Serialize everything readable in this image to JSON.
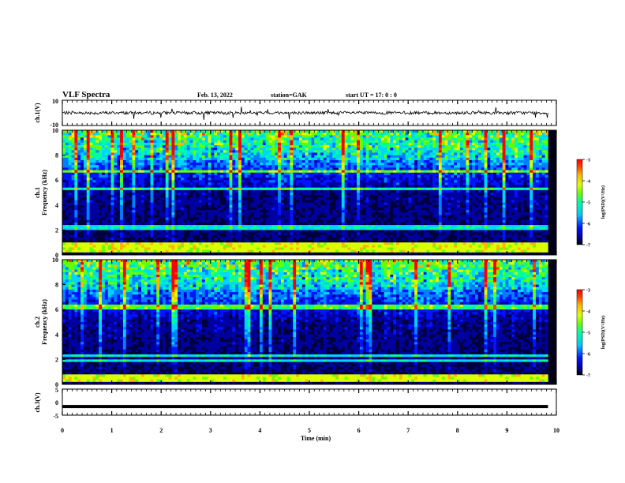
{
  "header": {
    "title": "VLF Spectra",
    "date": "Feb. 13, 2022",
    "station": "station=GAK",
    "start": "start UT =  17: 0  : 0"
  },
  "colors": {
    "colormap": [
      "#000000",
      "#00003c",
      "#0000a0",
      "#0014ff",
      "#0080ff",
      "#00d4ff",
      "#00ff9c",
      "#64ff00",
      "#dcff00",
      "#ffb400",
      "#ff3c00",
      "#ff0000"
    ]
  },
  "chart_data": [
    {
      "id": "ch1-waveform",
      "type": "line",
      "ylabel": "ch.1(V)",
      "ylim": [
        -10,
        10
      ],
      "yticklabels": [
        "10",
        "-10"
      ],
      "xlim": [
        0,
        10
      ],
      "baseline": 0,
      "series": [
        {
          "values_note": "dense waveform, roughly flat near 0 V with small noise spikes"
        }
      ]
    },
    {
      "id": "ch1-spectrogram",
      "type": "heatmap",
      "ylabel": "ch.1 Frequency (kHz)",
      "ylabel_lines": [
        "ch.1",
        "Frequency (kHz)"
      ],
      "ylim": [
        0,
        10
      ],
      "yticks": [
        0,
        2,
        4,
        6,
        8,
        10
      ],
      "xlim": [
        0,
        10
      ],
      "bright_bands_khz": [
        0.3,
        0.6,
        0.9,
        2.2,
        5.3,
        6.7
      ],
      "colorbar": {
        "label": "log(PSD)(V²/Hz)",
        "range": [
          -7,
          -3
        ],
        "ticks": [
          -3,
          -4,
          -5,
          -6,
          -7
        ]
      }
    },
    {
      "id": "ch2-spectrogram",
      "type": "heatmap",
      "ylabel": "ch.2 Frequency (kHz)",
      "ylabel_lines": [
        "ch.2",
        "Frequency (kHz)"
      ],
      "ylim": [
        0,
        10
      ],
      "yticks": [
        0,
        2,
        4,
        6,
        8,
        10
      ],
      "xlim": [
        0,
        10
      ],
      "bright_bands_khz": [
        0.3,
        0.6,
        1.9,
        2.3,
        6.2
      ],
      "colorbar": {
        "label": "log(PSD)(V²/Hz)",
        "range": [
          -7,
          -3
        ],
        "ticks": [
          -3,
          -4,
          -5,
          -6,
          -7
        ]
      }
    },
    {
      "id": "ch3-waveform",
      "type": "line",
      "ylabel": "ch.3(V)",
      "ylim": [
        -5,
        5
      ],
      "yticklabels": [
        "5",
        "0",
        "-5"
      ],
      "xlim": [
        0,
        10
      ],
      "constant_value": -1.7
    }
  ],
  "xaxis": {
    "label": "Time  (min)",
    "ticks": [
      0,
      1,
      2,
      3,
      4,
      5,
      6,
      7,
      8,
      9,
      10
    ],
    "ticklabels": [
      "0",
      "1",
      "2",
      "3",
      "4",
      "5",
      "6",
      "7",
      "8",
      "9",
      "10"
    ],
    "data_end": 9.83
  }
}
